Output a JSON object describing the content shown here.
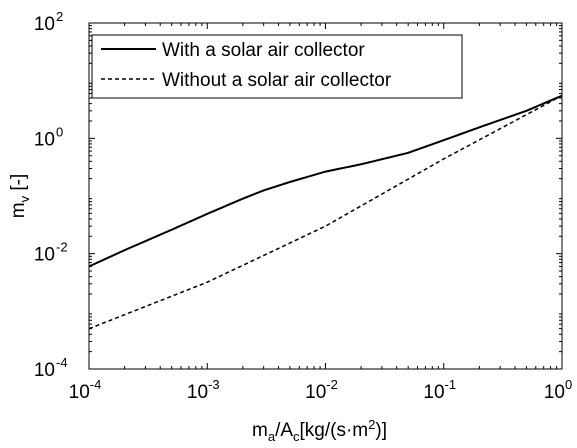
{
  "chart_data": {
    "type": "line",
    "x_scale": "log",
    "y_scale": "log",
    "xlim": [
      0.0001,
      1
    ],
    "ylim": [
      0.0001,
      100
    ],
    "x_ticks": [
      {
        "base": "10",
        "exp": "-4",
        "value": 0.0001
      },
      {
        "base": "10",
        "exp": "-3",
        "value": 0.001
      },
      {
        "base": "10",
        "exp": "-2",
        "value": 0.01
      },
      {
        "base": "10",
        "exp": "-1",
        "value": 0.1
      },
      {
        "base": "10",
        "exp": "0",
        "value": 1
      }
    ],
    "y_ticks": [
      {
        "base": "10",
        "exp": "-4",
        "value": 0.0001
      },
      {
        "base": "10",
        "exp": "-2",
        "value": 0.01
      },
      {
        "base": "10",
        "exp": "0",
        "value": 1
      },
      {
        "base": "10",
        "exp": "2",
        "value": 100
      }
    ],
    "xlabel": {
      "p1": "m",
      "sub1": "a",
      "p2": "/A",
      "sub2": "c",
      "p3": "[kg/(s·m",
      "sup": "2",
      "p4": ")]"
    },
    "ylabel": {
      "p1": "m",
      "sub1": "v",
      "p2": " [-]"
    },
    "grid": false,
    "legend_position": "top-left",
    "series": [
      {
        "name": "With a solar air collector",
        "style": "solid",
        "color": "#000000",
        "points": [
          [
            0.0001,
            0.006
          ],
          [
            0.0002,
            0.0115
          ],
          [
            0.0005,
            0.026
          ],
          [
            0.001,
            0.049
          ],
          [
            0.002,
            0.09
          ],
          [
            0.003,
            0.125
          ],
          [
            0.005,
            0.175
          ],
          [
            0.01,
            0.265
          ],
          [
            0.02,
            0.355
          ],
          [
            0.05,
            0.56
          ],
          [
            0.1,
            0.93
          ],
          [
            0.2,
            1.55
          ],
          [
            0.5,
            3.0
          ],
          [
            1,
            5.5
          ]
        ]
      },
      {
        "name": "Without a solar air collector",
        "style": "dashed",
        "color": "#000000",
        "points": [
          [
            0.0001,
            0.0005
          ],
          [
            0.001,
            0.0032
          ],
          [
            0.01,
            0.03
          ],
          [
            0.1,
            0.44
          ],
          [
            1,
            5.5
          ]
        ]
      }
    ]
  }
}
